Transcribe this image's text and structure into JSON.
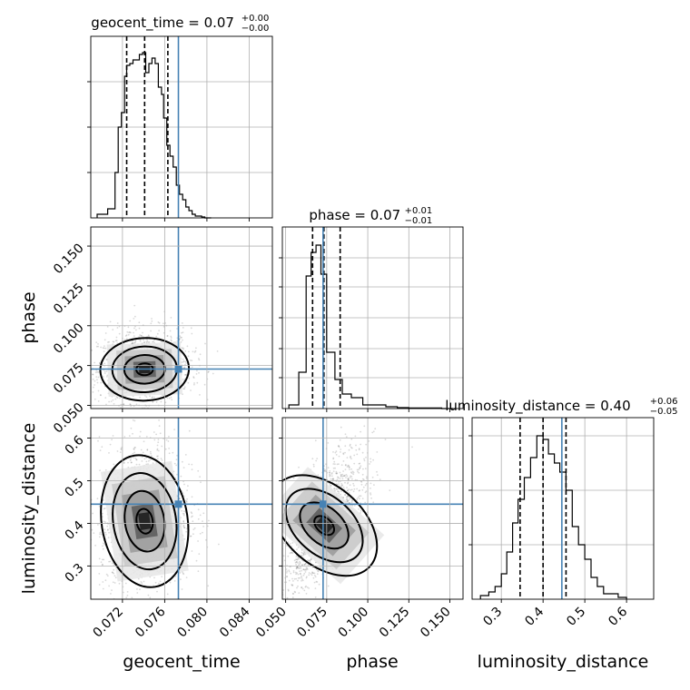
{
  "chart_data": {
    "type": "corner",
    "parameters": [
      "geocent_time",
      "phase",
      "luminosity_distance"
    ],
    "truth": {
      "geocent_time": 0.0773,
      "phase": 0.0728,
      "luminosity_distance": 0.445
    },
    "truth_color": "#4682b4",
    "grid": true,
    "panels": {
      "geocent_time": {
        "title": "geocent_time = 0.07",
        "title_upper": "+0.00",
        "title_lower": "−0.00",
        "xlim": [
          0.069,
          0.0862
        ],
        "quantiles": [
          0.0724,
          0.0741,
          0.0763
        ],
        "ylim": [
          0,
          1.0
        ],
        "y_ticks": [
          0.25,
          0.5,
          0.75
        ],
        "hist_edges": [
          0.0696,
          0.0706,
          0.0713,
          0.0716,
          0.0719,
          0.0722,
          0.0724,
          0.0727,
          0.073,
          0.0733,
          0.0736,
          0.0739,
          0.0742,
          0.0745,
          0.0748,
          0.0751,
          0.0754,
          0.0757,
          0.0759,
          0.0762,
          0.0765,
          0.0768,
          0.0771,
          0.0774,
          0.0777,
          0.078,
          0.0783,
          0.0786,
          0.0789,
          0.0792,
          0.0795,
          0.0798,
          0.0804
        ],
        "hist_values": [
          0.02,
          0.05,
          0.25,
          0.5,
          0.58,
          0.78,
          0.84,
          0.85,
          0.87,
          0.87,
          0.9,
          0.91,
          0.8,
          0.85,
          0.88,
          0.85,
          0.72,
          0.68,
          0.55,
          0.4,
          0.34,
          0.28,
          0.18,
          0.13,
          0.1,
          0.06,
          0.04,
          0.02,
          0.01,
          0.01,
          0.005,
          0
        ]
      },
      "phase": {
        "title": "phase = 0.07",
        "title_upper": "+0.01",
        "title_lower": "−0.01",
        "xlim": [
          0.048,
          0.158
        ],
        "quantiles": [
          0.0664,
          0.0733,
          0.0832
        ],
        "ylim": [
          0,
          1.0
        ],
        "y_ticks": [
          0.17,
          0.33,
          0.5,
          0.67,
          0.83
        ],
        "hist_edges": [
          0.052,
          0.058,
          0.0625,
          0.0655,
          0.0685,
          0.0715,
          0.075,
          0.08,
          0.0845,
          0.09,
          0.097,
          0.104,
          0.111,
          0.118,
          0.125,
          0.135,
          0.145,
          0.152
        ],
        "hist_values": [
          0.02,
          0.2,
          0.73,
          0.86,
          0.9,
          0.74,
          0.31,
          0.16,
          0.08,
          0.06,
          0.02,
          0.02,
          0.01,
          0.005,
          0.003,
          0.003,
          0
        ]
      },
      "luminosity_distance": {
        "title": "luminosity_distance = 0.40",
        "title_upper": "+0.06",
        "title_lower": "−0.05",
        "xlim": [
          0.23,
          0.665
        ],
        "quantiles": [
          0.345,
          0.4,
          0.455
        ],
        "ylim": [
          0,
          1.0
        ],
        "y_ticks": [
          0.3,
          0.6,
          0.9
        ],
        "hist_edges": [
          0.25,
          0.27,
          0.285,
          0.3,
          0.313,
          0.327,
          0.34,
          0.355,
          0.37,
          0.385,
          0.4,
          0.413,
          0.427,
          0.44,
          0.455,
          0.47,
          0.485,
          0.5,
          0.515,
          0.53,
          0.545,
          0.56,
          0.58,
          0.6
        ],
        "hist_values": [
          0.02,
          0.04,
          0.07,
          0.14,
          0.26,
          0.42,
          0.55,
          0.67,
          0.78,
          0.9,
          0.88,
          0.8,
          0.75,
          0.7,
          0.6,
          0.4,
          0.3,
          0.22,
          0.12,
          0.07,
          0.03,
          0.03,
          0.01
        ]
      }
    },
    "axes": {
      "geocent_time": {
        "label": "geocent_time",
        "ticks": [
          0.072,
          0.076,
          0.08,
          0.084
        ],
        "tick_labels": [
          "0.072",
          "0.076",
          "0.080",
          "0.084"
        ]
      },
      "phase": {
        "label": "phase",
        "ticks": [
          0.05,
          0.075,
          0.1,
          0.125,
          0.15
        ],
        "tick_labels": [
          "0.050",
          "0.075",
          "0.100",
          "0.125",
          "0.150"
        ]
      },
      "luminosity_distance": {
        "label": "luminosity_distance",
        "ticks": [
          0.3,
          0.4,
          0.5,
          0.6
        ],
        "tick_labels": [
          "0.3",
          "0.4",
          "0.5",
          "0.6"
        ]
      }
    },
    "joint": {
      "phase_vs_geocent_time": {
        "ylim": [
          0.048,
          0.162
        ],
        "center": [
          0.0741,
          0.0726
        ],
        "sigma": [
          0.00175,
          0.0082
        ],
        "corr": 0.05
      },
      "luminosity_distance_vs_geocent_time": {
        "ylim": [
          0.222,
          0.648
        ],
        "center": [
          0.0741,
          0.405
        ],
        "sigma": [
          0.0017,
          0.065
        ],
        "corr": 0.1
      },
      "luminosity_distance_vs_phase": {
        "center": [
          0.0735,
          0.395
        ],
        "sigma": [
          0.01,
          0.06
        ],
        "corr": 0.72
      }
    }
  }
}
